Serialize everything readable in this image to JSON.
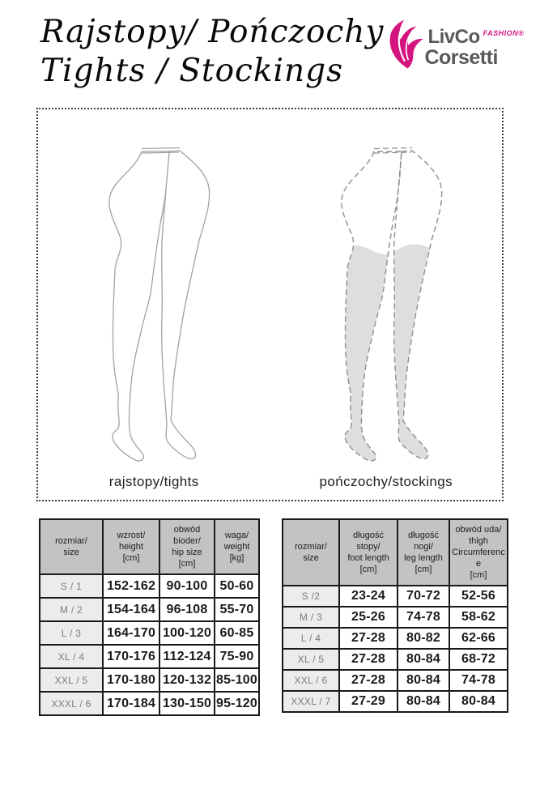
{
  "header": {
    "title_line1": "Rajstopy/ Pończochy",
    "title_line2": "Tights / Stockings",
    "logo": {
      "brand_top": "LivCo",
      "fashion_tag": "FASHION®",
      "brand_sub": "Corsetti"
    }
  },
  "figures": {
    "tights_label": "rajstopy/tights",
    "stockings_label": "pończochy/stockings"
  },
  "tables": {
    "left": {
      "headers": [
        "rozmiar/\nsize",
        "wzrost/\nheight\n[cm]",
        "obwód bioder/\nhip size\n[cm]",
        "waga/\nweight\n[kg]"
      ],
      "rows": [
        [
          "S / 1",
          "152-162",
          "90-100",
          "50-60"
        ],
        [
          "M / 2",
          "154-164",
          "96-108",
          "55-70"
        ],
        [
          "L / 3",
          "164-170",
          "100-120",
          "60-85"
        ],
        [
          "XL / 4",
          "170-176",
          "112-124",
          "75-90"
        ],
        [
          "XXL / 5",
          "170-180",
          "120-132",
          "85-100"
        ],
        [
          "XXXL / 6",
          "170-184",
          "130-150",
          "95-120"
        ]
      ]
    },
    "right": {
      "headers": [
        "rozmiar/\nsize",
        "długość stopy/\nfoot length\n[cm]",
        "długość nogi/\nleg length\n[cm]",
        "obwód uda/\nthigh\nCircumference\n[cm]"
      ],
      "rows": [
        [
          "S /2",
          "23-24",
          "70-72",
          "52-56"
        ],
        [
          "M / 3",
          "25-26",
          "74-78",
          "58-62"
        ],
        [
          "L / 4",
          "27-28",
          "80-82",
          "62-66"
        ],
        [
          "XL / 5",
          "27-28",
          "80-84",
          "68-72"
        ],
        [
          "XXL / 6",
          "27-28",
          "80-84",
          "74-78"
        ],
        [
          "XXXL / 7",
          "27-29",
          "80-84",
          "80-84"
        ]
      ]
    }
  },
  "colors": {
    "accent_magenta": "#d4147f",
    "logo_gray": "#58595b",
    "table_header_bg": "#c3c3c3",
    "size_column_bg": "#ececec",
    "stocking_fill": "#dedede",
    "figure_outline": "#a2a2a2"
  }
}
